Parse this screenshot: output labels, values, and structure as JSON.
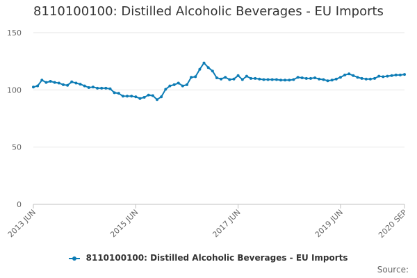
{
  "chart_data": {
    "type": "line",
    "title": "8110100100: Distilled Alcoholic Beverages - EU Imports",
    "xlabel": "",
    "ylabel": "",
    "ylim": [
      0,
      150
    ],
    "y_ticks": [
      "0",
      "50",
      "100",
      "150"
    ],
    "x_tick_labels": [
      "2013 JUN",
      "2015 JUN",
      "2017 JUN",
      "2019 JUN",
      "2020 SEP"
    ],
    "x_start": "2013-06",
    "x_end": "2020-09",
    "grid": "horizontal",
    "legend_position": "bottom",
    "series": [
      {
        "name": "8110100100: Distilled Alcoholic Beverages - EU Imports",
        "color": "#0d7cb5",
        "values": [
          102.5,
          103.5,
          108.5,
          106.5,
          107.5,
          106.5,
          106.0,
          104.5,
          104.0,
          107.0,
          106.0,
          105.0,
          103.5,
          102.0,
          102.5,
          101.5,
          101.5,
          101.5,
          101.0,
          97.5,
          97.0,
          94.5,
          94.5,
          94.5,
          94.0,
          92.5,
          93.5,
          95.5,
          95.0,
          91.5,
          94.0,
          100.5,
          103.5,
          104.5,
          106.0,
          103.5,
          104.5,
          111.0,
          111.5,
          118.0,
          123.5,
          119.5,
          116.5,
          110.5,
          109.5,
          111.0,
          109.0,
          109.5,
          112.5,
          109.0,
          112.0,
          110.0,
          110.0,
          109.5,
          109.0,
          109.0,
          109.0,
          109.0,
          108.5,
          108.5,
          108.5,
          109.0,
          111.0,
          110.5,
          110.0,
          110.0,
          110.5,
          109.5,
          109.0,
          108.0,
          108.5,
          109.5,
          111.0,
          113.0,
          114.0,
          112.5,
          111.0,
          110.0,
          109.5,
          109.5,
          110.0,
          112.0,
          111.5,
          112.0,
          112.5,
          113.0,
          113.0,
          113.5
        ]
      }
    ]
  },
  "legend": {
    "label": "8110100100: Distilled Alcoholic Beverages - EU Imports"
  },
  "footer": {
    "source_label": "Source:"
  }
}
